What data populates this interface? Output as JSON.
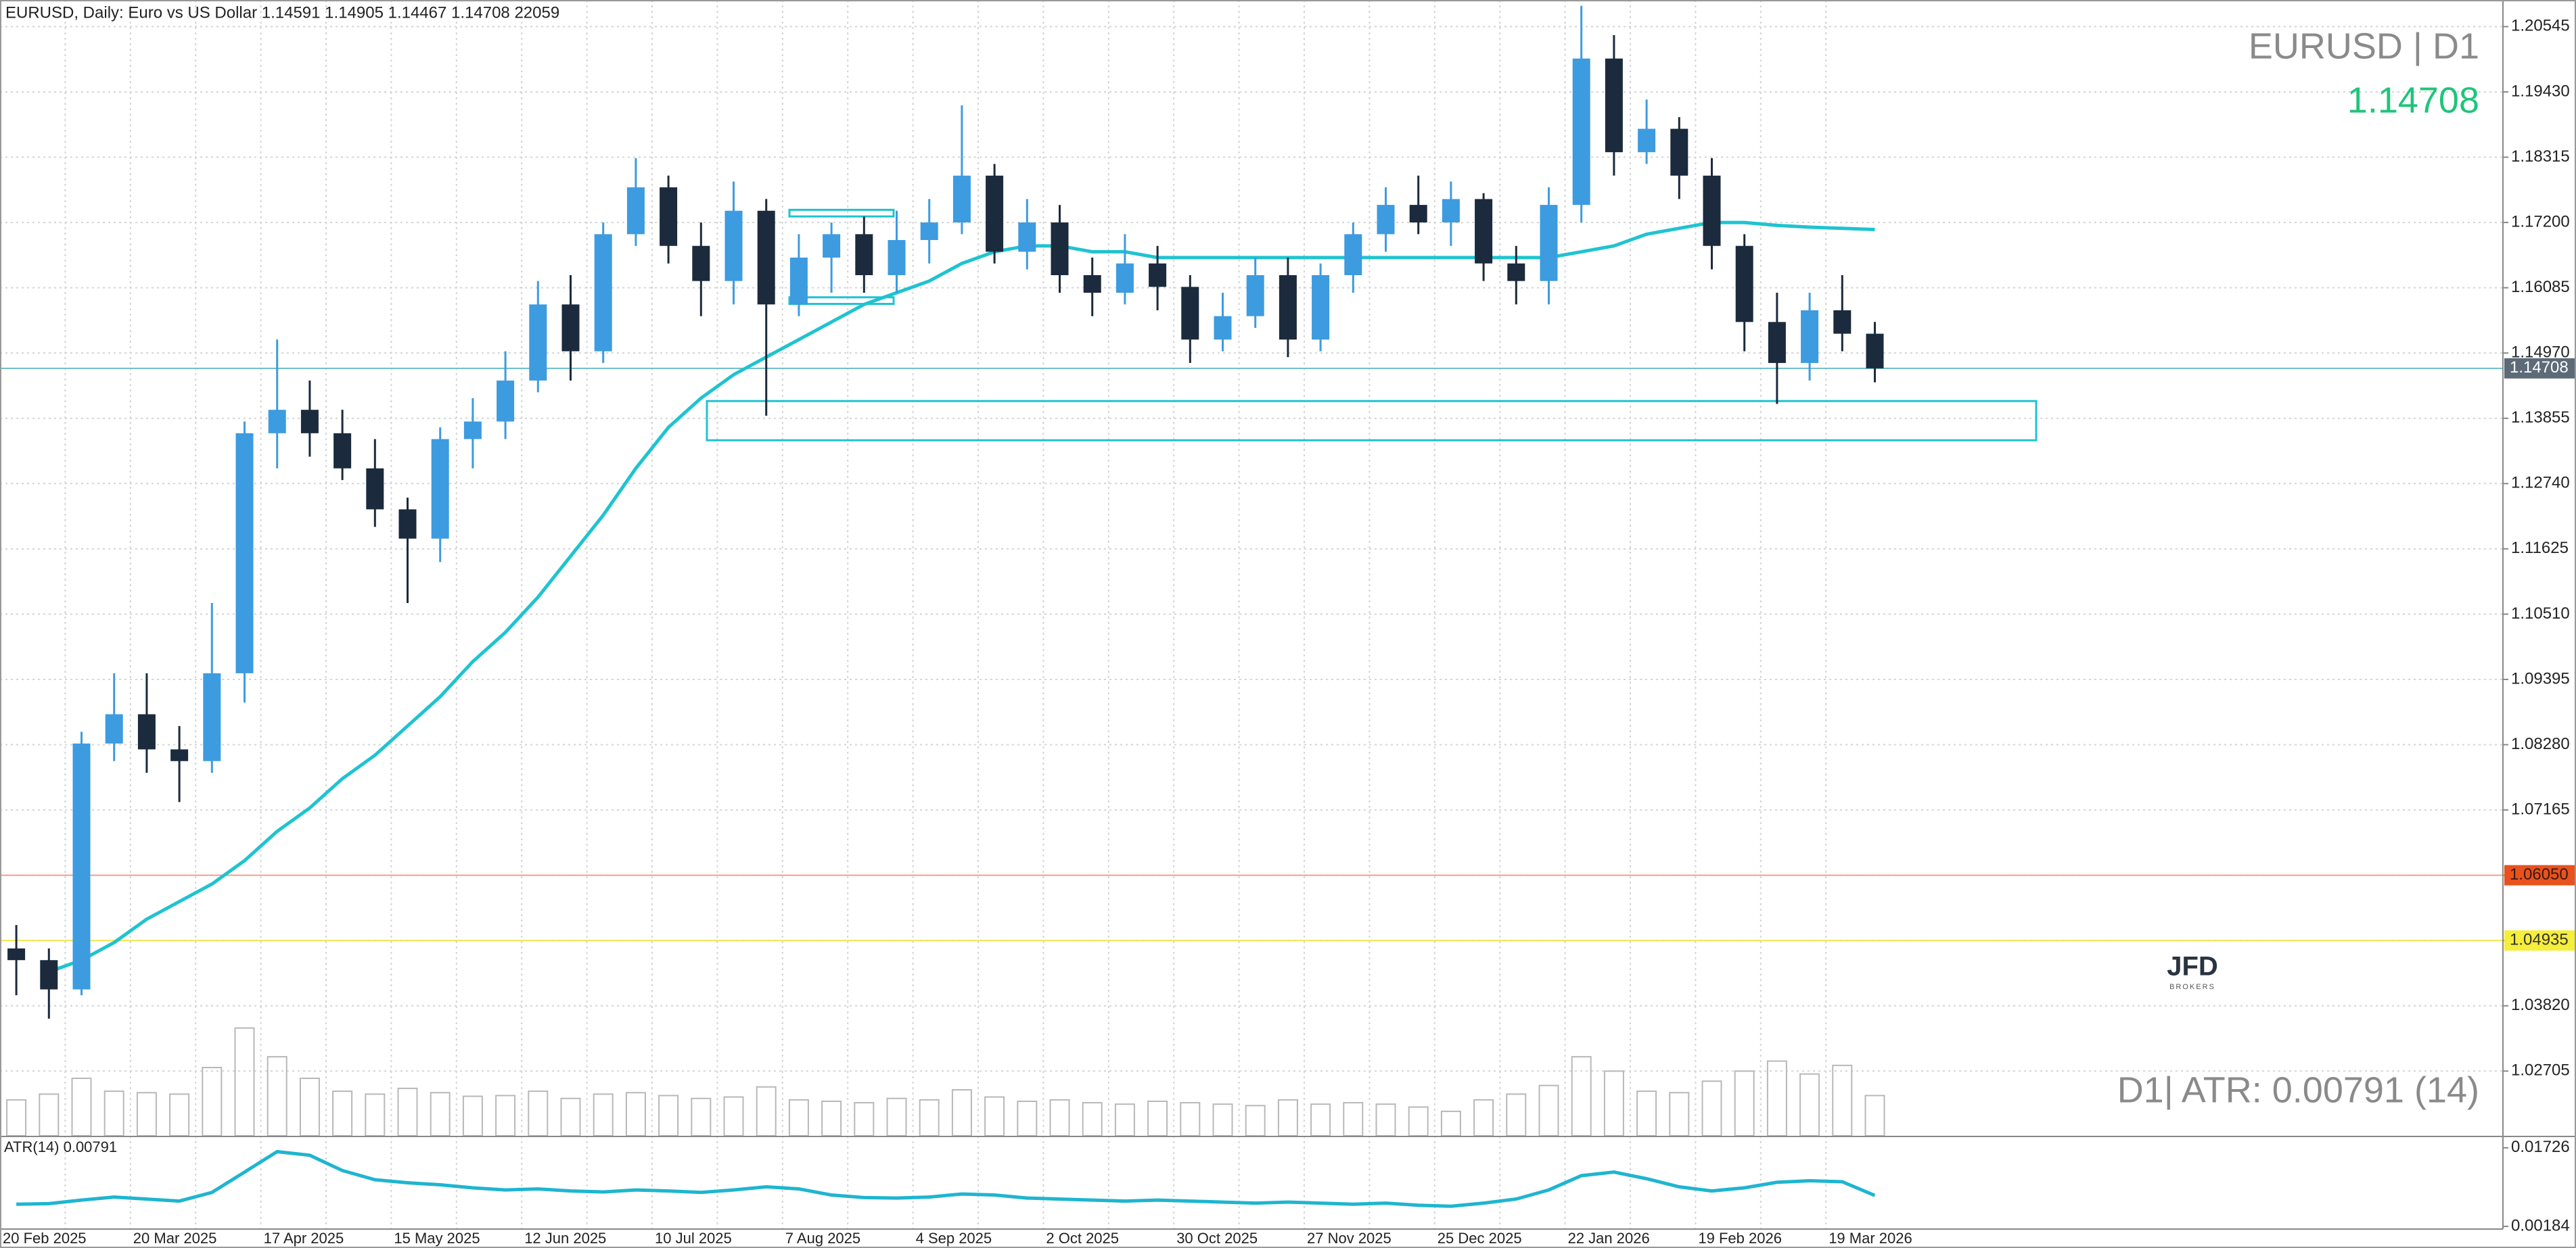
{
  "header": "EURUSD, Daily:  Euro vs US Dollar  1.14591 1.14905 1.14467 1.14708  22059",
  "logo": {
    "name": "JFD",
    "sub": "BROKERS"
  },
  "chart_data": [
    {
      "type": "candlestick",
      "title": "EURUSD | D1",
      "last_price": 1.14708,
      "categories": [
        "20 Feb 2025",
        null,
        null,
        null,
        "20 Mar 2025",
        null,
        null,
        null,
        "17 Apr 2025",
        null,
        null,
        null,
        "15 May 2025",
        null,
        null,
        null,
        "12 Jun 2025",
        null,
        null,
        null,
        "10 Jul 2025",
        null,
        null,
        null,
        "7 Aug 2025",
        null,
        null,
        null,
        "4 Sep 2025",
        null,
        null,
        null,
        "2 Oct 2025",
        null,
        null,
        null,
        "30 Oct 2025",
        null,
        null,
        null,
        "27 Nov 2025",
        null,
        null,
        null,
        "25 Dec 2025",
        null,
        null,
        null,
        "22 Jan 2026",
        null,
        null,
        null,
        "19 Feb 2026",
        null,
        null,
        null,
        "19 Mar 2026",
        null
      ],
      "open": [
        1.048,
        1.046,
        1.041,
        1.083,
        1.088,
        1.082,
        1.08,
        1.095,
        1.136,
        1.14,
        1.136,
        1.13,
        1.123,
        1.118,
        1.135,
        1.138,
        1.145,
        1.158,
        1.15,
        1.17,
        1.178,
        1.168,
        1.162,
        1.174,
        1.158,
        1.166,
        1.17,
        1.163,
        1.169,
        1.172,
        1.18,
        1.167,
        1.172,
        1.163,
        1.16,
        1.165,
        1.161,
        1.152,
        1.156,
        1.163,
        1.152,
        1.163,
        1.17,
        1.175,
        1.172,
        1.176,
        1.165,
        1.162,
        1.175,
        1.2,
        1.184,
        1.188,
        1.18,
        1.168,
        1.155,
        1.148,
        1.157,
        1.153
      ],
      "high": [
        1.052,
        1.048,
        1.085,
        1.095,
        1.095,
        1.086,
        1.107,
        1.138,
        1.152,
        1.145,
        1.14,
        1.135,
        1.125,
        1.137,
        1.142,
        1.15,
        1.162,
        1.163,
        1.172,
        1.183,
        1.18,
        1.172,
        1.179,
        1.176,
        1.17,
        1.172,
        1.173,
        1.174,
        1.176,
        1.192,
        1.182,
        1.176,
        1.175,
        1.166,
        1.17,
        1.168,
        1.163,
        1.16,
        1.166,
        1.166,
        1.165,
        1.172,
        1.178,
        1.18,
        1.179,
        1.177,
        1.168,
        1.178,
        1.209,
        1.204,
        1.193,
        1.19,
        1.183,
        1.17,
        1.16,
        1.16,
        1.163,
        1.155
      ],
      "low": [
        1.04,
        1.036,
        1.04,
        1.08,
        1.078,
        1.073,
        1.078,
        1.09,
        1.13,
        1.132,
        1.128,
        1.12,
        1.107,
        1.114,
        1.13,
        1.135,
        1.143,
        1.145,
        1.148,
        1.168,
        1.165,
        1.156,
        1.158,
        1.139,
        1.156,
        1.16,
        1.16,
        1.16,
        1.165,
        1.17,
        1.165,
        1.164,
        1.16,
        1.156,
        1.158,
        1.157,
        1.148,
        1.15,
        1.154,
        1.149,
        1.15,
        1.16,
        1.167,
        1.17,
        1.168,
        1.162,
        1.158,
        1.158,
        1.172,
        1.18,
        1.182,
        1.176,
        1.164,
        1.15,
        1.141,
        1.145,
        1.15,
        1.1447
      ],
      "close": [
        1.046,
        1.041,
        1.083,
        1.088,
        1.082,
        1.08,
        1.095,
        1.136,
        1.14,
        1.136,
        1.13,
        1.123,
        1.118,
        1.135,
        1.138,
        1.145,
        1.158,
        1.15,
        1.17,
        1.178,
        1.168,
        1.162,
        1.174,
        1.158,
        1.166,
        1.17,
        1.163,
        1.169,
        1.172,
        1.18,
        1.167,
        1.172,
        1.163,
        1.16,
        1.165,
        1.161,
        1.152,
        1.156,
        1.163,
        1.152,
        1.163,
        1.17,
        1.175,
        1.172,
        1.176,
        1.165,
        1.162,
        1.175,
        1.2,
        1.184,
        1.188,
        1.18,
        1.168,
        1.155,
        1.148,
        1.157,
        1.153,
        1.14708
      ],
      "up_color": "#3d9be0",
      "down_color": "#1b2a3c",
      "volume": [
        50000,
        58000,
        80000,
        62000,
        60000,
        58000,
        95000,
        150000,
        110000,
        80000,
        62000,
        58000,
        66000,
        60000,
        55000,
        56000,
        62000,
        52000,
        58000,
        60000,
        56000,
        52000,
        54000,
        68000,
        50000,
        48000,
        46000,
        52000,
        50000,
        64000,
        54000,
        48000,
        50000,
        46000,
        44000,
        48000,
        46000,
        44000,
        42000,
        50000,
        44000,
        46000,
        44000,
        40000,
        34000,
        50000,
        58000,
        70000,
        110000,
        90000,
        62000,
        60000,
        76000,
        90000,
        104000,
        86000,
        98000,
        56000
      ],
      "vlim": [
        0,
        160000
      ],
      "volume_color": "#b8b8b8",
      "ma": {
        "color": "#1fc3d0",
        "values": [
          null,
          1.044,
          1.046,
          1.049,
          1.053,
          1.056,
          1.059,
          1.063,
          1.068,
          1.072,
          1.077,
          1.081,
          1.086,
          1.091,
          1.097,
          1.102,
          1.108,
          1.115,
          1.122,
          1.13,
          1.137,
          1.142,
          1.146,
          1.149,
          1.152,
          1.155,
          1.158,
          1.16,
          1.162,
          1.165,
          1.167,
          1.168,
          1.168,
          1.167,
          1.167,
          1.166,
          1.166,
          1.166,
          1.166,
          1.166,
          1.166,
          1.166,
          1.166,
          1.166,
          1.166,
          1.166,
          1.166,
          1.166,
          1.167,
          1.168,
          1.17,
          1.171,
          1.172,
          1.172,
          1.1715,
          1.1712,
          1.171,
          1.1708
        ]
      },
      "ylim": [
        1.016,
        1.21
      ],
      "yticks": [
        1.20545,
        {
          "value": 1.1943,
          "label": "1.19430"
        },
        1.18315,
        {
          "value": 1.172,
          "label": "1.17200"
        },
        1.16085,
        {
          "value": 1.1497,
          "label": "1.14970"
        },
        1.13855,
        {
          "value": 1.1274,
          "label": "1.12740"
        },
        1.11625,
        {
          "value": 1.1051,
          "label": "1.10510"
        },
        1.09395,
        {
          "value": 1.0828,
          "label": "1.08280"
        },
        1.07165,
        {
          "value": 1.0605,
          "label": "1.06050"
        },
        1.04935,
        {
          "value": 1.0382,
          "label": "1.03820"
        },
        1.02705
      ],
      "grid": true,
      "levels": [
        {
          "value": 1.14708,
          "color": "#6cbccc",
          "label_bg": "#5d6b78",
          "label_color": "#ffffff"
        },
        {
          "value": 1.0605,
          "label": "1.06050",
          "color": "#f0a090",
          "label_bg": "#e8521e",
          "label_color": "#3a1a10"
        },
        {
          "value": 1.04935,
          "color": "#f2e64a",
          "label_bg": "#f5ee3a",
          "label_color": "#333333"
        }
      ],
      "zones": [
        {
          "high": 1.1415,
          "low": 1.1348,
          "color": "#1fc3d0"
        },
        {
          "high": 1.17416,
          "low": 1.17303,
          "color": "#1fc3d0"
        },
        {
          "high": 1.15922,
          "low": 1.15809,
          "color": "#1fc3d0"
        }
      ]
    },
    {
      "type": "line",
      "title": "ATR(14) 0.00791",
      "annotation": "D1| ATR: 0.00791 (14)",
      "color": "#1fb5d0",
      "values": [
        0.0062,
        0.0063,
        0.007,
        0.0076,
        0.0072,
        0.0068,
        0.0085,
        0.0125,
        0.0165,
        0.0158,
        0.0128,
        0.011,
        0.0104,
        0.01,
        0.0094,
        0.009,
        0.0092,
        0.0088,
        0.0086,
        0.009,
        0.0088,
        0.0085,
        0.009,
        0.0096,
        0.0092,
        0.008,
        0.0075,
        0.0074,
        0.0076,
        0.0082,
        0.008,
        0.0074,
        0.0072,
        0.007,
        0.0068,
        0.007,
        0.0068,
        0.0066,
        0.0064,
        0.0066,
        0.0064,
        0.0062,
        0.0064,
        0.006,
        0.0058,
        0.0064,
        0.0072,
        0.009,
        0.0118,
        0.0125,
        0.0112,
        0.0096,
        0.0088,
        0.0094,
        0.0105,
        0.0108,
        0.0106,
        0.00791
      ],
      "ylim": [
        0.00131,
        0.01936
      ],
      "yticks": [
        0.01726,
        0.00184
      ]
    }
  ]
}
